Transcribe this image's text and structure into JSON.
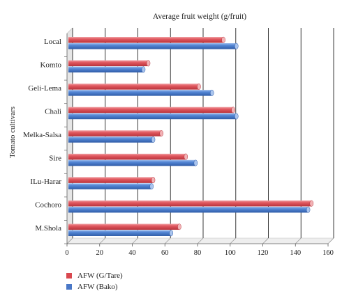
{
  "chart_data": {
    "type": "bar",
    "orientation": "horizontal",
    "style": "3d-cylinder",
    "title": "Average fruit weight (g/fruit)",
    "xlabel": "",
    "ylabel": "Tomato cultivars",
    "xlim": [
      0,
      160
    ],
    "xticks": [
      0,
      20,
      40,
      60,
      80,
      100,
      120,
      140,
      160
    ],
    "grid": true,
    "legend_position": "bottom-left",
    "categories": [
      "Local",
      "Komto",
      "Geli-Lema",
      "Chali",
      "Melka-Salsa",
      "Sire",
      "ILu-Harar",
      "Cochoro",
      "M.Shola"
    ],
    "series": [
      {
        "name": "AFW (G/Tare)",
        "color": "#d9484f",
        "values": [
          95,
          49,
          80,
          101,
          57,
          72,
          52,
          149,
          68
        ]
      },
      {
        "name": "AFW (Bako)",
        "color": "#4a78c7",
        "values": [
          103,
          46,
          88,
          103,
          52,
          78,
          51,
          147,
          63
        ]
      }
    ]
  }
}
